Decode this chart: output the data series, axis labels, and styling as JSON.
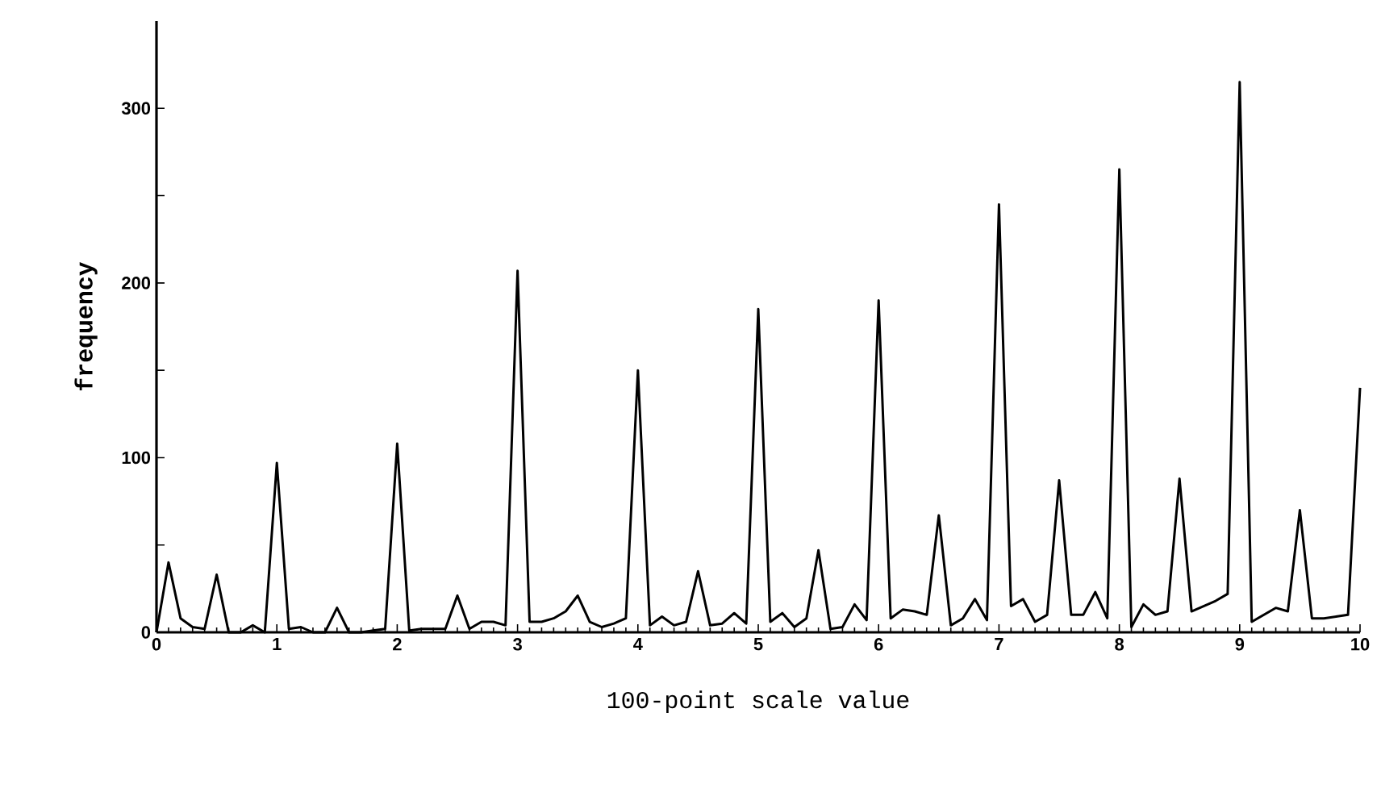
{
  "chart_data": {
    "type": "line",
    "xlabel": "100-point scale value",
    "ylabel": "frequency",
    "x": [
      0,
      0.1,
      0.2,
      0.3,
      0.4,
      0.5,
      0.6,
      0.7,
      0.8,
      0.9,
      1,
      1.1,
      1.2,
      1.3,
      1.4,
      1.5,
      1.6,
      1.7,
      1.8,
      1.9,
      2,
      2.1,
      2.2,
      2.3,
      2.4,
      2.5,
      2.6,
      2.7,
      2.8,
      2.9,
      3,
      3.1,
      3.2,
      3.3,
      3.4,
      3.5,
      3.6,
      3.7,
      3.8,
      3.9,
      4,
      4.1,
      4.2,
      4.3,
      4.4,
      4.5,
      4.6,
      4.7,
      4.8,
      4.9,
      5,
      5.1,
      5.2,
      5.3,
      5.4,
      5.5,
      5.6,
      5.7,
      5.8,
      5.9,
      6,
      6.1,
      6.2,
      6.3,
      6.4,
      6.5,
      6.6,
      6.7,
      6.8,
      6.9,
      7,
      7.1,
      7.2,
      7.3,
      7.4,
      7.5,
      7.6,
      7.7,
      7.8,
      7.9,
      8,
      8.1,
      8.2,
      8.3,
      8.4,
      8.5,
      8.6,
      8.7,
      8.8,
      8.9,
      9,
      9.1,
      9.2,
      9.3,
      9.4,
      9.5,
      9.6,
      9.7,
      9.8,
      9.9,
      10
    ],
    "values": [
      0,
      40,
      8,
      3,
      2,
      33,
      0,
      0,
      4,
      0,
      97,
      2,
      3,
      0,
      0,
      14,
      0,
      0,
      1,
      2,
      108,
      1,
      2,
      2,
      2,
      21,
      2,
      6,
      6,
      4,
      207,
      6,
      6,
      8,
      12,
      21,
      6,
      3,
      5,
      8,
      150,
      4,
      9,
      4,
      6,
      35,
      4,
      5,
      11,
      5,
      185,
      6,
      11,
      3,
      8,
      47,
      2,
      3,
      16,
      7,
      190,
      8,
      13,
      12,
      10,
      67,
      4,
      8,
      19,
      7,
      245,
      15,
      19,
      6,
      10,
      87,
      10,
      10,
      23,
      8,
      265,
      3,
      16,
      10,
      12,
      88,
      12,
      15,
      18,
      22,
      315,
      6,
      10,
      14,
      12,
      70,
      8,
      8,
      9,
      10,
      140
    ],
    "color": "#000000",
    "xlim": [
      0,
      10
    ],
    "xticks": [
      0,
      1,
      2,
      3,
      4,
      5,
      6,
      7,
      8,
      9,
      10
    ],
    "ylim": [
      0,
      350
    ],
    "yticks": [
      0,
      {
        "value": 50,
        "label": null
      },
      100,
      {
        "value": 150,
        "label": null
      },
      200,
      {
        "value": 250,
        "label": null
      },
      300
    ],
    "grid": false,
    "marker": "none",
    "line_style": "solid"
  }
}
